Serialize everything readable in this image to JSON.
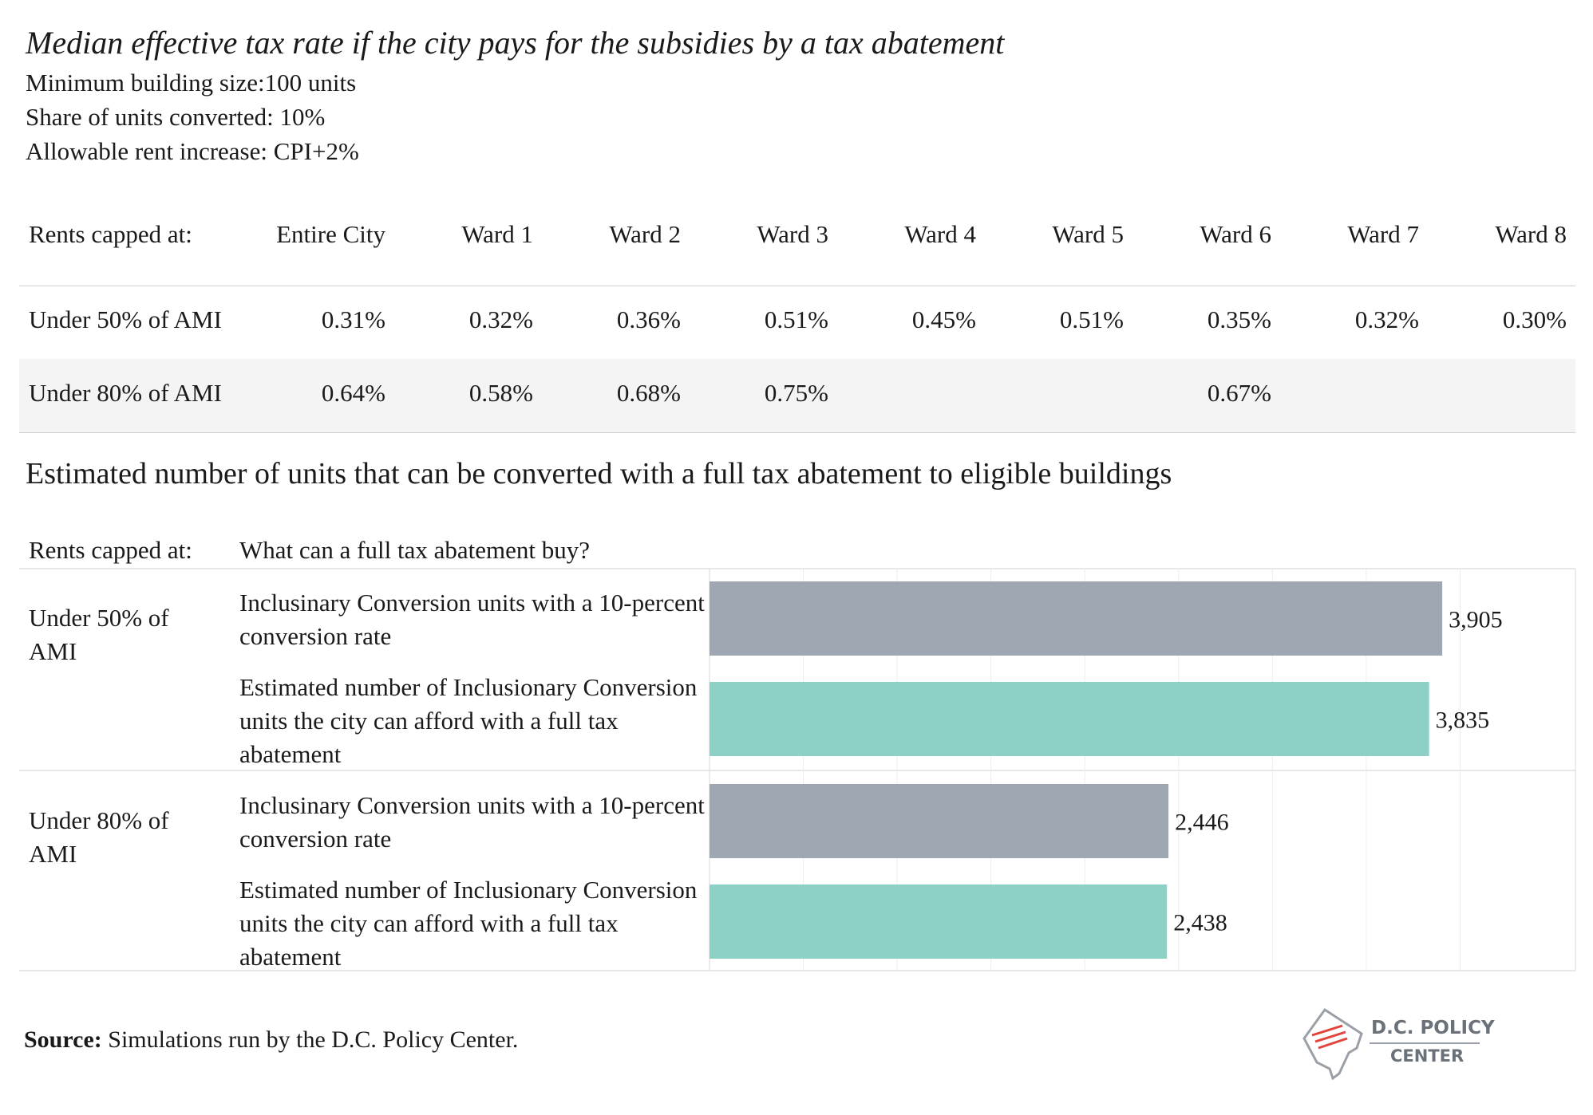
{
  "title": "Median effective tax rate if the city pays for the subsidies by a tax abatement",
  "subtitles": [
    "Minimum building size:100 units",
    "Share of units converted: 10%",
    "Allowable rent increase: CPI+2%"
  ],
  "rate_table": {
    "row_header": "Rents capped at:",
    "columns": [
      "Entire City",
      "Ward 1",
      "Ward 2",
      "Ward 3",
      "Ward 4",
      "Ward 5",
      "Ward 6",
      "Ward 7",
      "Ward 8"
    ],
    "rows": [
      {
        "label": "Under 50% of AMI",
        "values": [
          "0.31%",
          "0.32%",
          "0.36%",
          "0.51%",
          "0.45%",
          "0.51%",
          "0.35%",
          "0.32%",
          "0.30%"
        ]
      },
      {
        "label": "Under 80% of AMI",
        "values": [
          "0.64%",
          "0.58%",
          "0.68%",
          "0.75%",
          "",
          "",
          "0.67%",
          "",
          ""
        ]
      }
    ]
  },
  "chart_title": "Estimated number of units that can be converted with a full tax abatement to eligible buildings",
  "chart_headers": {
    "rents": "Rents capped at:",
    "buy": "What can a  full tax abatement buy?"
  },
  "chart_data": {
    "type": "bar",
    "orientation": "horizontal",
    "groups": [
      {
        "label": "Under 50% of AMI",
        "bars": [
          {
            "label": "Inclusinary Conversion units with a 10-percent conversion rate",
            "value": 3905,
            "value_label": "3,905",
            "color": "#9ea7b2"
          },
          {
            "label": "Estimated number of Inclusionary Conversion units the city can afford with a full tax abatement",
            "value": 3835,
            "value_label": "3,835",
            "color": "#8dd1c5"
          }
        ]
      },
      {
        "label": "Under 80% of AMI",
        "bars": [
          {
            "label": "Inclusinary Conversion units with a 10-percent conversion rate",
            "value": 2446,
            "value_label": "2,446",
            "color": "#9ea7b2"
          },
          {
            "label": "Estimated number of Inclusionary Conversion units the city can afford with a full tax abatement",
            "value": 2438,
            "value_label": "2,438",
            "color": "#8dd1c5"
          }
        ]
      }
    ],
    "xlim": [
      0,
      4500
    ],
    "grid": true
  },
  "source": {
    "label": "Source:",
    "text": "Simulations run by the D.C. Policy Center."
  },
  "logo": {
    "line1": "D.C. POLICY",
    "line2": "CENTER",
    "icon": "dc-map-icon"
  }
}
